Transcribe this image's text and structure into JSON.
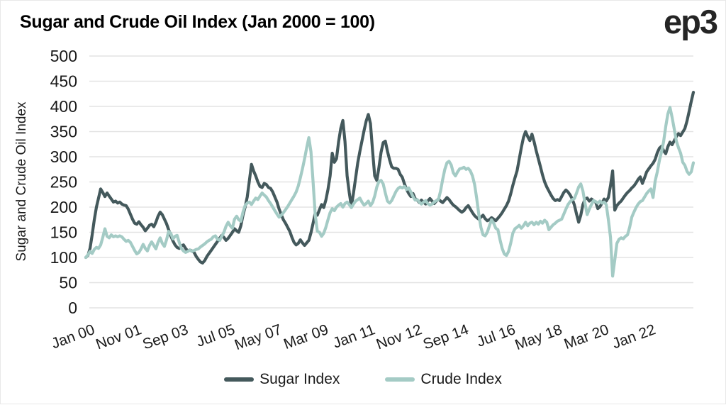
{
  "header": {
    "title": "Sugar and Crude Oil Index (Jan 2000 = 100)",
    "logo": "ep3"
  },
  "chart_data": {
    "type": "line",
    "title": "Sugar and Crude Oil Index (Jan 2000 = 100)",
    "xlabel": "",
    "ylabel": "Sugar and Crude Oil Index",
    "ylim": [
      0,
      500
    ],
    "ytick_step": 50,
    "grid": "horizontal-only",
    "legend_position": "bottom-center",
    "x_start": "Jan 2000",
    "x_end": "Nov 2023",
    "x_frequency": "monthly",
    "x_tick_labels": [
      "Jan 00",
      "Nov 01",
      "Sep 03",
      "Jul 05",
      "May 07",
      "Mar 09",
      "Jan 11",
      "Nov 12",
      "Sep 14",
      "Jul 16",
      "May 18",
      "Mar 20",
      "Jan 22"
    ],
    "x_tick_month_index": [
      0,
      22,
      44,
      66,
      88,
      110,
      132,
      154,
      176,
      198,
      220,
      242,
      264
    ],
    "colors": {
      "grid": "#e3e3e3",
      "text": "#1a1a1a"
    },
    "series": [
      {
        "name": "Sugar Index",
        "color": "#44595c",
        "values": [
          100,
          104,
          118,
          145,
          175,
          200,
          218,
          236,
          229,
          221,
          228,
          222,
          216,
          210,
          212,
          208,
          210,
          206,
          204,
          203,
          196,
          186,
          176,
          168,
          166,
          171,
          165,
          160,
          153,
          158,
          164,
          166,
          161,
          170,
          182,
          190,
          185,
          176,
          167,
          155,
          143,
          133,
          125,
          120,
          118,
          123,
          125,
          118,
          113,
          115,
          113,
          110,
          102,
          96,
          91,
          89,
          94,
          102,
          108,
          114,
          120,
          126,
          132,
          138,
          144,
          140,
          134,
          138,
          144,
          150,
          157,
          153,
          150,
          163,
          184,
          200,
          220,
          252,
          285,
          272,
          262,
          250,
          241,
          239,
          247,
          245,
          239,
          237,
          230,
          220,
          210,
          196,
          185,
          175,
          168,
          160,
          152,
          140,
          130,
          125,
          128,
          135,
          129,
          124,
          129,
          134,
          149,
          168,
          188,
          184,
          195,
          205,
          199,
          214,
          235,
          262,
          307,
          289,
          296,
          330,
          356,
          372,
          330,
          262,
          229,
          201,
          228,
          258,
          288,
          310,
          331,
          352,
          371,
          384,
          366,
          312,
          262,
          253,
          279,
          309,
          328,
          331,
          311,
          294,
          280,
          277,
          277,
          275,
          265,
          259,
          246,
          235,
          227,
          221,
          227,
          217,
          214,
          209,
          214,
          210,
          206,
          212,
          217,
          212,
          207,
          212,
          216,
          212,
          209,
          214,
          219,
          215,
          209,
          204,
          201,
          197,
          193,
          190,
          193,
          199,
          203,
          196,
          189,
          183,
          179,
          176,
          180,
          184,
          177,
          173,
          175,
          179,
          176,
          173,
          178,
          183,
          189,
          196,
          203,
          212,
          226,
          243,
          258,
          272,
          295,
          318,
          338,
          350,
          340,
          332,
          345,
          330,
          312,
          296,
          280,
          264,
          250,
          240,
          232,
          224,
          217,
          213,
          215,
          213,
          221,
          229,
          234,
          230,
          224,
          216,
          204,
          186,
          170,
          184,
          205,
          216,
          218,
          212,
          216,
          213,
          210,
          197,
          201,
          208,
          216,
          212,
          219,
          243,
          272,
          194,
          203,
          208,
          212,
          218,
          224,
          229,
          233,
          238,
          242,
          248,
          255,
          260,
          247,
          258,
          270,
          276,
          282,
          287,
          295,
          308,
          317,
          321,
          312,
          306,
          320,
          329,
          324,
          332,
          340,
          346,
          342,
          349,
          356,
          371,
          390,
          410,
          428
        ]
      },
      {
        "name": "Crude Index",
        "color": "#a4cbc5",
        "values": [
          100,
          105,
          112,
          108,
          116,
          120,
          118,
          125,
          140,
          157,
          142,
          139,
          145,
          141,
          143,
          141,
          143,
          141,
          136,
          132,
          134,
          130,
          122,
          114,
          107,
          110,
          117,
          126,
          118,
          113,
          124,
          131,
          124,
          117,
          130,
          139,
          128,
          122,
          135,
          152,
          148,
          137,
          142,
          144,
          130,
          118,
          113,
          110,
          112,
          115,
          112,
          114,
          116,
          117,
          121,
          124,
          127,
          131,
          134,
          136,
          141,
          143,
          136,
          134,
          142,
          150,
          162,
          170,
          163,
          158,
          176,
          182,
          175,
          172,
          190,
          203,
          208,
          210,
          205,
          212,
          218,
          215,
          222,
          228,
          224,
          220,
          213,
          207,
          200,
          193,
          186,
          180,
          184,
          189,
          195,
          201,
          208,
          215,
          222,
          230,
          242,
          258,
          276,
          296,
          318,
          338,
          310,
          250,
          185,
          152,
          150,
          142,
          148,
          160,
          175,
          189,
          197,
          193,
          200,
          204,
          207,
          200,
          207,
          210,
          205,
          199,
          206,
          212,
          215,
          218,
          210,
          204,
          207,
          212,
          203,
          209,
          222,
          240,
          251,
          253,
          246,
          228,
          212,
          208,
          213,
          222,
          231,
          237,
          240,
          238,
          241,
          235,
          238,
          230,
          221,
          214,
          215,
          210,
          206,
          210,
          213,
          207,
          204,
          206,
          210,
          213,
          215,
          232,
          255,
          275,
          288,
          291,
          284,
          268,
          262,
          270,
          276,
          277,
          279,
          275,
          277,
          272,
          262,
          245,
          217,
          185,
          160,
          145,
          143,
          150,
          163,
          175,
          168,
          158,
          155,
          135,
          118,
          107,
          104,
          112,
          128,
          148,
          157,
          160,
          164,
          158,
          163,
          170,
          163,
          168,
          170,
          165,
          170,
          166,
          172,
          168,
          174,
          170,
          155,
          160,
          165,
          168,
          172,
          174,
          176,
          186,
          196,
          205,
          211,
          215,
          217,
          228,
          240,
          246,
          232,
          207,
          185,
          196,
          205,
          213,
          211,
          208,
          212,
          208,
          210,
          205,
          175,
          140,
          63,
          95,
          128,
          136,
          139,
          137,
          142,
          145,
          160,
          180,
          190,
          199,
          206,
          211,
          213,
          220,
          227,
          232,
          236,
          219,
          252,
          270,
          293,
          310,
          330,
          360,
          385,
          398,
          378,
          355,
          331,
          318,
          307,
          289,
          283,
          271,
          265,
          270,
          288
        ]
      }
    ]
  }
}
